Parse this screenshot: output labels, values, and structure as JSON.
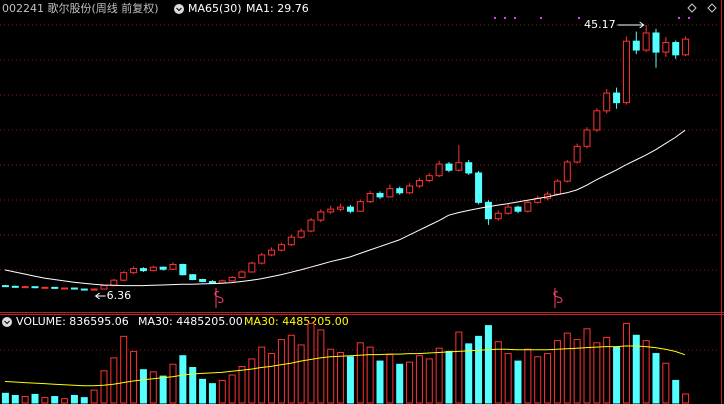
{
  "chart_data": {
    "type": "candlestick",
    "title": "002241 歌尔股份(周线 前复权)",
    "indicator": "MA65(30)",
    "ma_label": "MA1: 29.76",
    "ylim": [
      3.14,
      48.83
    ],
    "up_color": "#ff3232",
    "down_color": "#54ffff",
    "high_label": 45.17,
    "low_label": 6.36,
    "open": [
      7.0,
      6.9,
      6.8,
      6.85,
      6.7,
      6.75,
      6.6,
      6.65,
      6.5,
      6.45,
      6.5,
      7.0,
      7.8,
      8.9,
      9.5,
      9.2,
      9.7,
      9.4,
      10.1,
      8.6,
      7.9,
      7.6,
      7.4,
      7.7,
      8.2,
      9.0,
      10.3,
      11.5,
      12.2,
      13.0,
      14.1,
      15.0,
      16.6,
      17.8,
      18.2,
      18.5,
      17.9,
      19.3,
      20.5,
      20.0,
      21.2,
      20.6,
      21.6,
      22.4,
      23.1,
      24.8,
      23.9,
      25.0,
      23.5,
      19.2,
      16.8,
      17.6,
      18.5,
      17.9,
      19.2,
      19.8,
      20.4,
      22.3,
      25.1,
      27.4,
      29.8,
      32.6,
      35.2,
      33.8,
      42.8,
      41.5,
      44.0,
      41.2,
      42.6,
      40.8
    ],
    "high": [
      7.1,
      7.0,
      6.95,
      6.9,
      6.85,
      6.8,
      6.7,
      6.7,
      6.55,
      6.6,
      7.1,
      8.0,
      9.1,
      9.8,
      9.7,
      9.9,
      9.8,
      10.4,
      10.2,
      8.7,
      8.0,
      7.8,
      7.9,
      8.4,
      9.2,
      10.5,
      11.8,
      12.6,
      13.3,
      14.5,
      15.4,
      16.9,
      18.2,
      18.7,
      19.0,
      18.8,
      19.6,
      20.9,
      20.8,
      21.8,
      21.5,
      22.0,
      22.8,
      23.5,
      25.3,
      25.1,
      27.6,
      25.4,
      23.8,
      19.5,
      18.0,
      18.9,
      18.7,
      19.5,
      20.2,
      20.8,
      22.6,
      25.4,
      27.8,
      30.2,
      33.0,
      35.8,
      36.0,
      43.5,
      44.2,
      45.17,
      44.6,
      43.4,
      42.9,
      43.5
    ],
    "low": [
      6.8,
      6.7,
      6.75,
      6.6,
      6.65,
      6.55,
      6.5,
      6.45,
      6.4,
      6.36,
      6.45,
      6.9,
      7.7,
      8.7,
      9.0,
      9.1,
      9.2,
      9.3,
      8.5,
      7.8,
      7.5,
      7.3,
      7.3,
      7.6,
      8.1,
      8.9,
      10.1,
      11.3,
      12.0,
      12.8,
      13.9,
      14.8,
      16.3,
      17.5,
      17.9,
      17.6,
      17.8,
      19.1,
      19.7,
      19.9,
      20.3,
      20.4,
      21.3,
      22.1,
      22.9,
      23.6,
      23.7,
      23.2,
      18.9,
      15.9,
      16.5,
      17.4,
      17.6,
      17.7,
      19.0,
      19.5,
      20.2,
      22.1,
      24.9,
      27.1,
      29.5,
      32.2,
      32.9,
      33.5,
      40.9,
      41.2,
      38.9,
      40.5,
      40.2,
      40.6
    ],
    "close": [
      6.9,
      6.8,
      6.85,
      6.7,
      6.75,
      6.6,
      6.65,
      6.5,
      6.45,
      6.5,
      7.0,
      7.8,
      8.9,
      9.5,
      9.2,
      9.7,
      9.4,
      10.1,
      8.6,
      7.9,
      7.6,
      7.4,
      7.7,
      8.2,
      9.0,
      10.3,
      11.5,
      12.2,
      13.0,
      14.1,
      15.0,
      16.6,
      17.8,
      18.2,
      18.5,
      17.9,
      19.3,
      20.5,
      20.0,
      21.2,
      20.6,
      21.6,
      22.4,
      23.1,
      24.8,
      23.9,
      25.0,
      23.5,
      19.2,
      16.8,
      17.6,
      18.5,
      17.9,
      19.2,
      19.8,
      20.4,
      22.3,
      25.1,
      27.4,
      29.8,
      32.6,
      35.2,
      33.8,
      42.8,
      41.5,
      44.0,
      41.2,
      42.6,
      40.8,
      43.1
    ],
    "ma": {
      "color": "#ffffff",
      "values": [
        9.3,
        9.0,
        8.7,
        8.4,
        8.1,
        7.9,
        7.7,
        7.5,
        7.35,
        7.2,
        7.1,
        7.05,
        7.0,
        7.0,
        7.0,
        7.05,
        7.1,
        7.15,
        7.2,
        7.2,
        7.25,
        7.3,
        7.35,
        7.45,
        7.6,
        7.8,
        8.0,
        8.3,
        8.6,
        8.95,
        9.3,
        9.7,
        10.1,
        10.5,
        10.85,
        11.2,
        11.7,
        12.2,
        12.7,
        13.2,
        13.7,
        14.4,
        15.1,
        15.8,
        16.5,
        17.3,
        17.7,
        18.0,
        18.3,
        18.55,
        18.8,
        19.0,
        19.25,
        19.5,
        19.75,
        20.0,
        20.3,
        20.6,
        21.0,
        21.7,
        22.5,
        23.2,
        23.9,
        24.7,
        25.4,
        26.1,
        26.9,
        27.8,
        28.7,
        29.76
      ]
    },
    "volume": {
      "label": "VOLUME: 836595.06",
      "ma_label_1": "MA30: 4485205.00",
      "ma_label_2": "MA30: 4485205.00",
      "ylim": [
        0,
        8000000
      ],
      "ma_color": "#ffff00",
      "values": [
        900000,
        700000,
        600000,
        800000,
        500000,
        600000,
        400000,
        700000,
        500000,
        1200000,
        3000000,
        4200000,
        6200000,
        4800000,
        3100000,
        2900000,
        2500000,
        3600000,
        4400000,
        3300000,
        2200000,
        1800000,
        2100000,
        2600000,
        3400000,
        4100000,
        5200000,
        4600000,
        5900000,
        6300000,
        5400000,
        7400000,
        6800000,
        5000000,
        4700000,
        4300000,
        5600000,
        5200000,
        3900000,
        4500000,
        3600000,
        3800000,
        4400000,
        4100000,
        5100000,
        4800000,
        6600000,
        5500000,
        6200000,
        7200000,
        5700000,
        4600000,
        3900000,
        5000000,
        4300000,
        4600000,
        5800000,
        6500000,
        5900000,
        6900000,
        5600000,
        6100000,
        5200000,
        7400000,
        6300000,
        5800000,
        4600000,
        3700000,
        2100000,
        836595.06
      ],
      "ma_values": [
        2000000,
        1950000,
        1900000,
        1850000,
        1800000,
        1750000,
        1700000,
        1650000,
        1600000,
        1600000,
        1650000,
        1750000,
        1900000,
        2050000,
        2150000,
        2250000,
        2350000,
        2450000,
        2600000,
        2700000,
        2750000,
        2800000,
        2850000,
        2950000,
        3050000,
        3150000,
        3300000,
        3400000,
        3550000,
        3700000,
        3900000,
        4050000,
        4200000,
        4300000,
        4350000,
        4400000,
        4450000,
        4500000,
        4500000,
        4550000,
        4550000,
        4600000,
        4600000,
        4650000,
        4700000,
        4750000,
        4800000,
        4850000,
        4900000,
        4950000,
        5000000,
        5000000,
        4950000,
        4950000,
        4950000,
        4950000,
        5000000,
        5050000,
        5100000,
        5150000,
        5200000,
        5250000,
        5250000,
        5300000,
        5300000,
        5250000,
        5150000,
        5000000,
        4800000,
        4485205
      ]
    }
  }
}
